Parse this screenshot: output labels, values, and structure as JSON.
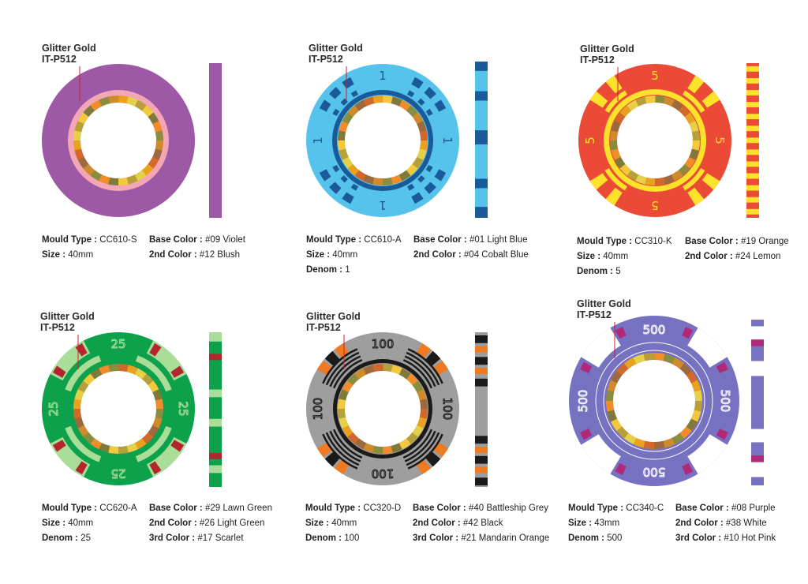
{
  "chips": [
    {
      "id": "violet",
      "callout": [
        "Glitter Gold",
        "IT-P512"
      ],
      "style": "plain",
      "colors": {
        "base": "#9d58a6",
        "second": "#f2a6b6",
        "third": null
      },
      "denom_label": null,
      "left_specs": [
        {
          "label": "Mould Type :",
          "value": "CC610-S"
        },
        {
          "label": "Size :",
          "value": "40mm"
        }
      ],
      "right_specs": [
        {
          "label": "Base Color :",
          "value": "#09 Violet"
        },
        {
          "label": "2nd Color :",
          "value": "#12 Blush"
        }
      ]
    },
    {
      "id": "lightblue",
      "callout": [
        "Glitter Gold",
        "IT-P512"
      ],
      "style": "dashes",
      "colors": {
        "base": "#55c3ec",
        "second": "#1b5a99",
        "third": null
      },
      "denom_label": "1",
      "left_specs": [
        {
          "label": "Mould Type :",
          "value": "CC610-A"
        },
        {
          "label": "Size :",
          "value": "40mm"
        },
        {
          "label": "Denom :",
          "value": "1"
        }
      ],
      "right_specs": [
        {
          "label": "Base Color :",
          "value": "#01 Light Blue"
        },
        {
          "label": "2nd Color :",
          "value": "#04 Cobalt Blue"
        }
      ]
    },
    {
      "id": "orange",
      "callout": [
        "Glitter Gold",
        "IT-P512"
      ],
      "style": "stripes",
      "colors": {
        "base": "#eb4b36",
        "second": "#fde22b",
        "third": null
      },
      "denom_label": "5",
      "left_specs": [
        {
          "label": "Mould Type :",
          "value": "CC310-K"
        },
        {
          "label": "Size :",
          "value": "40mm"
        },
        {
          "label": "Denom :",
          "value": "5"
        }
      ],
      "right_specs": [
        {
          "label": "Base Color :",
          "value": "#19 Orange"
        },
        {
          "label": "2nd Color :",
          "value": "#24 Lemon"
        }
      ]
    },
    {
      "id": "green",
      "callout": [
        "Glitter Gold",
        "IT-P512"
      ],
      "style": "arcs",
      "colors": {
        "base": "#0ea14b",
        "second": "#a9dd98",
        "third": "#b3262e"
      },
      "denom_label": "25",
      "left_specs": [
        {
          "label": "Mould Type :",
          "value": "CC620-A"
        },
        {
          "label": "Size :",
          "value": "40mm"
        },
        {
          "label": "Denom :",
          "value": "25"
        }
      ],
      "right_specs": [
        {
          "label": "Base Color :",
          "value": "#29 Lawn Green"
        },
        {
          "label": "2nd Color :",
          "value": "#26 Light Green"
        },
        {
          "label": "3rd Color :",
          "value": "#17 Scarlet"
        }
      ]
    },
    {
      "id": "grey",
      "callout": [
        "Glitter Gold",
        "IT-P512"
      ],
      "style": "lines",
      "colors": {
        "base": "#9e9e9e",
        "second": "#1a1a1a",
        "third": "#ef7a21"
      },
      "denom_label": "100",
      "left_specs": [
        {
          "label": "Mould Type :",
          "value": "CC320-D"
        },
        {
          "label": "Size :",
          "value": "40mm"
        },
        {
          "label": "Denom :",
          "value": "100"
        }
      ],
      "right_specs": [
        {
          "label": "Base Color :",
          "value": "#40 Battleship Grey"
        },
        {
          "label": "2nd Color :",
          "value": "#42 Black"
        },
        {
          "label": "3rd Color :",
          "value": "#21 Mandarin Orange"
        }
      ]
    },
    {
      "id": "purple",
      "callout": [
        "Glitter Gold",
        "IT-P512"
      ],
      "style": "blocks",
      "colors": {
        "base": "#7771c2",
        "second": "#ffffff",
        "third": "#b22a77"
      },
      "denom_label": "500",
      "left_specs": [
        {
          "label": "Mould Type :",
          "value": "CC340-C"
        },
        {
          "label": "Size :",
          "value": "43mm"
        },
        {
          "label": "Denom :",
          "value": "500"
        }
      ],
      "right_specs": [
        {
          "label": "Base Color :",
          "value": "#08 Purple"
        },
        {
          "label": "2nd Color :",
          "value": "#38 White"
        },
        {
          "label": "3rd Color :",
          "value": "#10 Hot Pink"
        }
      ]
    }
  ]
}
